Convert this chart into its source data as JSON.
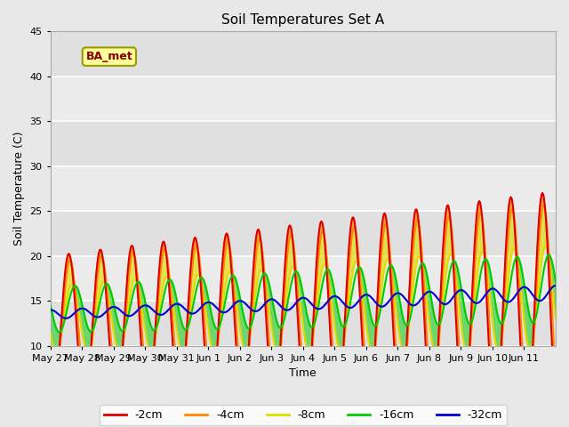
{
  "title": "Soil Temperatures Set A",
  "xlabel": "Time",
  "ylabel": "Soil Temperature (C)",
  "ylim": [
    10,
    45
  ],
  "yticks": [
    10,
    15,
    20,
    25,
    30,
    35,
    40,
    45
  ],
  "annotation": "BA_met",
  "colors": {
    "-2cm": "#dd0000",
    "-4cm": "#ff8800",
    "-8cm": "#dddd00",
    "-16cm": "#00cc00",
    "-32cm": "#0000cc"
  },
  "legend_labels": [
    "-2cm",
    "-4cm",
    "-8cm",
    "-16cm",
    "-32cm"
  ],
  "xtick_labels": [
    "May 27",
    "May 28",
    "May 29",
    "May 30",
    "May 31",
    "Jun 1",
    "Jun 2",
    "Jun 3",
    "Jun 4",
    "Jun 5",
    "Jun 6",
    "Jun 7",
    "Jun 8",
    "Jun 9",
    "Jun 10",
    "Jun 11"
  ],
  "fig_facecolor": "#e8e8e8",
  "ax_facecolor": "#f0f0f0"
}
